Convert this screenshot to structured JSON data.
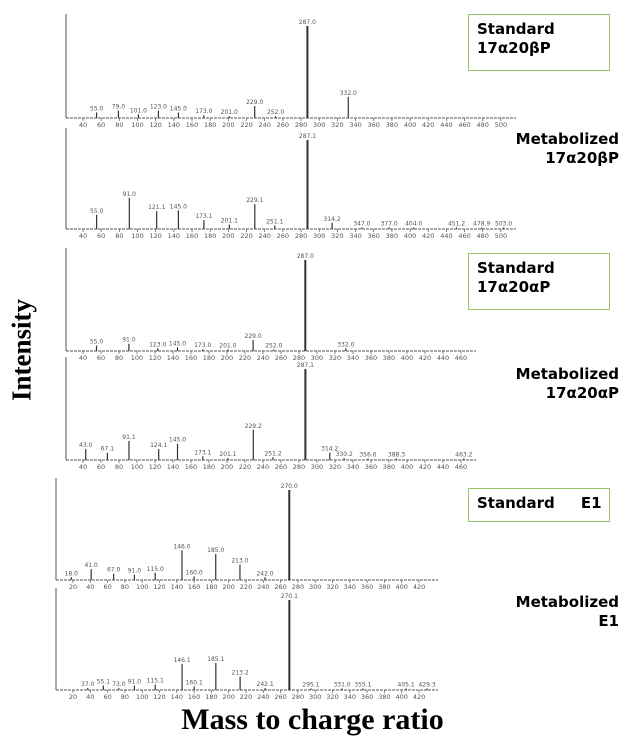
{
  "y_axis_label": "Intensity",
  "x_axis_label": "Mass to charge ratio",
  "colors": {
    "bar": "#333333",
    "axis": "#555555",
    "tick_text": "#555555",
    "box_border": "#9bc36a"
  },
  "chart_data": [
    {
      "type": "bar",
      "title_lines": [
        "Standard",
        "17α20βP"
      ],
      "boxed": true,
      "xlim": [
        40,
        510
      ],
      "x_ticks": [
        40,
        60,
        80,
        100,
        120,
        140,
        160,
        180,
        200,
        220,
        240,
        260,
        280,
        300,
        320,
        340,
        360,
        380,
        400,
        420,
        440,
        460,
        480,
        500
      ],
      "peaks": [
        {
          "mz": 55.0,
          "rel": 0.06,
          "label": "55.0"
        },
        {
          "mz": 79.0,
          "rel": 0.08,
          "label": "79.0"
        },
        {
          "mz": 101.0,
          "rel": 0.04,
          "label": "101.0"
        },
        {
          "mz": 123.0,
          "rel": 0.08,
          "label": "123.0"
        },
        {
          "mz": 145.0,
          "rel": 0.06,
          "label": "145.0"
        },
        {
          "mz": 173.0,
          "rel": 0.03,
          "label": "173.0"
        },
        {
          "mz": 201.0,
          "rel": 0.02,
          "label": "201.0"
        },
        {
          "mz": 229.0,
          "rel": 0.13,
          "label": "229.0"
        },
        {
          "mz": 252.0,
          "rel": 0.02,
          "label": "252.0"
        },
        {
          "mz": 287.0,
          "rel": 1.0,
          "label": "287.0"
        },
        {
          "mz": 332.0,
          "rel": 0.23,
          "label": "332.0"
        }
      ]
    },
    {
      "type": "bar",
      "title_lines": [
        "Metabolized",
        "17α20βP"
      ],
      "boxed": false,
      "xlim": [
        40,
        510
      ],
      "x_ticks": [
        40,
        60,
        80,
        100,
        120,
        140,
        160,
        180,
        200,
        220,
        240,
        260,
        280,
        300,
        320,
        340,
        360,
        380,
        400,
        420,
        440,
        460,
        480,
        500
      ],
      "peaks": [
        {
          "mz": 55.0,
          "rel": 0.16,
          "label": "55.0"
        },
        {
          "mz": 91.0,
          "rel": 0.35,
          "label": "91.0"
        },
        {
          "mz": 121.1,
          "rel": 0.2,
          "label": "121.1"
        },
        {
          "mz": 145.0,
          "rel": 0.21,
          "label": "145.0"
        },
        {
          "mz": 173.1,
          "rel": 0.1,
          "label": "173.1"
        },
        {
          "mz": 201.1,
          "rel": 0.05,
          "label": "201.1"
        },
        {
          "mz": 229.1,
          "rel": 0.28,
          "label": "229.1"
        },
        {
          "mz": 251.1,
          "rel": 0.04,
          "label": "251.1"
        },
        {
          "mz": 287.1,
          "rel": 1.0,
          "label": "287.1"
        },
        {
          "mz": 314.2,
          "rel": 0.07,
          "label": "314.2"
        },
        {
          "mz": 347.0,
          "rel": 0.01,
          "label": "347.0"
        },
        {
          "mz": 377.0,
          "rel": 0.01,
          "label": "377.0"
        },
        {
          "mz": 404.0,
          "rel": 0.01,
          "label": "404.0"
        },
        {
          "mz": 451.2,
          "rel": 0.01,
          "label": "451.2"
        },
        {
          "mz": 478.9,
          "rel": 0.01,
          "label": "478.9"
        },
        {
          "mz": 503.0,
          "rel": 0.01,
          "label": "503.0"
        }
      ]
    },
    {
      "type": "bar",
      "title_lines": [
        "Standard",
        "17α20αP"
      ],
      "boxed": true,
      "xlim": [
        40,
        470
      ],
      "x_ticks": [
        40,
        60,
        80,
        100,
        120,
        140,
        160,
        180,
        200,
        220,
        240,
        260,
        280,
        300,
        320,
        340,
        360,
        380,
        400,
        420,
        440,
        460
      ],
      "peaks": [
        {
          "mz": 55.0,
          "rel": 0.06,
          "label": "55.0"
        },
        {
          "mz": 91.0,
          "rel": 0.08,
          "label": "91.0"
        },
        {
          "mz": 123.0,
          "rel": 0.03,
          "label": "123.0"
        },
        {
          "mz": 145.0,
          "rel": 0.04,
          "label": "145.0"
        },
        {
          "mz": 173.0,
          "rel": 0.02,
          "label": "173.0"
        },
        {
          "mz": 201.0,
          "rel": 0.01,
          "label": "201.0"
        },
        {
          "mz": 229.0,
          "rel": 0.12,
          "label": "229.0"
        },
        {
          "mz": 252.0,
          "rel": 0.01,
          "label": "252.0"
        },
        {
          "mz": 287.0,
          "rel": 1.0,
          "label": "287.0"
        },
        {
          "mz": 332.0,
          "rel": 0.03,
          "label": "332.0"
        }
      ]
    },
    {
      "type": "bar",
      "title_lines": [
        "Metabolized",
        "17α20αP"
      ],
      "boxed": false,
      "xlim": [
        40,
        470
      ],
      "x_ticks": [
        40,
        60,
        80,
        100,
        120,
        140,
        160,
        180,
        200,
        220,
        240,
        260,
        280,
        300,
        320,
        340,
        360,
        380,
        400,
        420,
        440,
        460
      ],
      "peaks": [
        {
          "mz": 43.0,
          "rel": 0.12,
          "label": "43.0"
        },
        {
          "mz": 67.1,
          "rel": 0.08,
          "label": "67.1"
        },
        {
          "mz": 91.1,
          "rel": 0.21,
          "label": "91.1"
        },
        {
          "mz": 124.1,
          "rel": 0.12,
          "label": "124.1"
        },
        {
          "mz": 145.0,
          "rel": 0.18,
          "label": "145.0"
        },
        {
          "mz": 173.1,
          "rel": 0.04,
          "label": "173.1"
        },
        {
          "mz": 201.1,
          "rel": 0.02,
          "label": "201.1"
        },
        {
          "mz": 229.2,
          "rel": 0.33,
          "label": "229.2"
        },
        {
          "mz": 251.2,
          "rel": 0.03,
          "label": "251.2"
        },
        {
          "mz": 287.1,
          "rel": 1.0,
          "label": "287.1"
        },
        {
          "mz": 314.2,
          "rel": 0.08,
          "label": "314.2"
        },
        {
          "mz": 330.2,
          "rel": 0.02,
          "label": "330.2"
        },
        {
          "mz": 356.6,
          "rel": 0.01,
          "label": "356.6"
        },
        {
          "mz": 388.3,
          "rel": 0.01,
          "label": "388.3"
        },
        {
          "mz": 463.2,
          "rel": 0.01,
          "label": "463.2"
        }
      ]
    },
    {
      "type": "bar",
      "title_lines": [
        "Standard     E1"
      ],
      "boxed": true,
      "xlim": [
        20,
        435
      ],
      "x_ticks": [
        20,
        40,
        60,
        80,
        100,
        120,
        140,
        160,
        180,
        200,
        220,
        240,
        260,
        280,
        300,
        320,
        340,
        360,
        380,
        400,
        420
      ],
      "peaks": [
        {
          "mz": 18.0,
          "rel": 0.03,
          "label": "18.0"
        },
        {
          "mz": 41.0,
          "rel": 0.12,
          "label": "41.0"
        },
        {
          "mz": 67.0,
          "rel": 0.07,
          "label": "67.0"
        },
        {
          "mz": 91.0,
          "rel": 0.06,
          "label": "91.0"
        },
        {
          "mz": 115.0,
          "rel": 0.08,
          "label": "115.0"
        },
        {
          "mz": 146.0,
          "rel": 0.33,
          "label": "146.0"
        },
        {
          "mz": 160.0,
          "rel": 0.04,
          "label": "160.0"
        },
        {
          "mz": 185.0,
          "rel": 0.29,
          "label": "185.0"
        },
        {
          "mz": 213.0,
          "rel": 0.17,
          "label": "213.0"
        },
        {
          "mz": 242.0,
          "rel": 0.03,
          "label": "242.0"
        },
        {
          "mz": 270.0,
          "rel": 1.0,
          "label": "270.0"
        }
      ]
    },
    {
      "type": "bar",
      "title_lines": [
        "Metabolized",
        "E1"
      ],
      "boxed": false,
      "xlim": [
        20,
        435
      ],
      "x_ticks": [
        20,
        40,
        60,
        80,
        100,
        120,
        140,
        160,
        180,
        200,
        220,
        240,
        260,
        280,
        300,
        320,
        340,
        360,
        380,
        400,
        420
      ],
      "peaks": [
        {
          "mz": 37.0,
          "rel": 0.02,
          "label": "37.0"
        },
        {
          "mz": 55.1,
          "rel": 0.05,
          "label": "55.1"
        },
        {
          "mz": 73.0,
          "rel": 0.02,
          "label": "73.0"
        },
        {
          "mz": 91.0,
          "rel": 0.05,
          "label": "91.0"
        },
        {
          "mz": 115.1,
          "rel": 0.06,
          "label": "115.1"
        },
        {
          "mz": 146.1,
          "rel": 0.29,
          "label": "146.1"
        },
        {
          "mz": 160.1,
          "rel": 0.04,
          "label": "160.1"
        },
        {
          "mz": 185.1,
          "rel": 0.3,
          "label": "185.1"
        },
        {
          "mz": 213.2,
          "rel": 0.15,
          "label": "213.2"
        },
        {
          "mz": 242.1,
          "rel": 0.02,
          "label": "242.1"
        },
        {
          "mz": 270.1,
          "rel": 1.0,
          "label": "270.1"
        },
        {
          "mz": 295.1,
          "rel": 0.01,
          "label": "295.1"
        },
        {
          "mz": 331.0,
          "rel": 0.01,
          "label": "331.0"
        },
        {
          "mz": 355.1,
          "rel": 0.01,
          "label": "355.1"
        },
        {
          "mz": 405.1,
          "rel": 0.01,
          "label": "405.1"
        },
        {
          "mz": 429.3,
          "rel": 0.01,
          "label": "429.3"
        }
      ]
    }
  ]
}
